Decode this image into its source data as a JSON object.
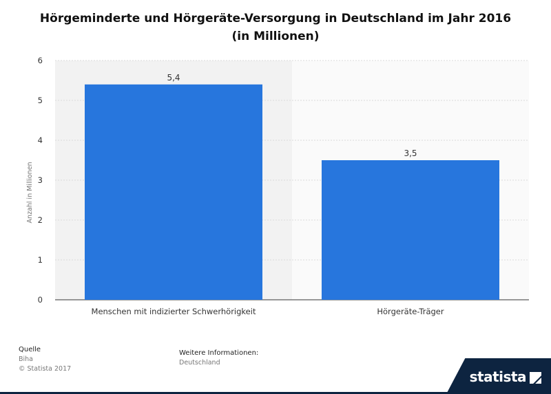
{
  "chart_data": {
    "type": "bar",
    "title": "Hörgeminderte und Hörgeräte-Versorgung in Deutschland im Jahr 2016 (in Millionen)",
    "title_lines": [
      "Hörgeminderte und Hörgeräte-Versorgung in Deutschland im Jahr 2016",
      "(in Millionen)"
    ],
    "categories": [
      "Menschen mit indizierter Schwerhörigkeit",
      "Hörgeräte-Träger"
    ],
    "values": [
      5.4,
      3.5
    ],
    "value_labels": [
      "5,4",
      "3,5"
    ],
    "xlabel": "",
    "ylabel": "Anzahl in Millionen",
    "ylim": [
      0,
      6
    ],
    "yticks": [
      0,
      1,
      2,
      3,
      4,
      5,
      6
    ],
    "grid": true,
    "bar_color": "#2776dd"
  },
  "footer": {
    "source_label": "Quelle",
    "source_value": "Biha",
    "copyright": "© Statista 2017",
    "info_label": "Weitere Informationen:",
    "info_value": "Deutschland"
  },
  "brand": {
    "name": "statista",
    "color": "#0d2440"
  }
}
